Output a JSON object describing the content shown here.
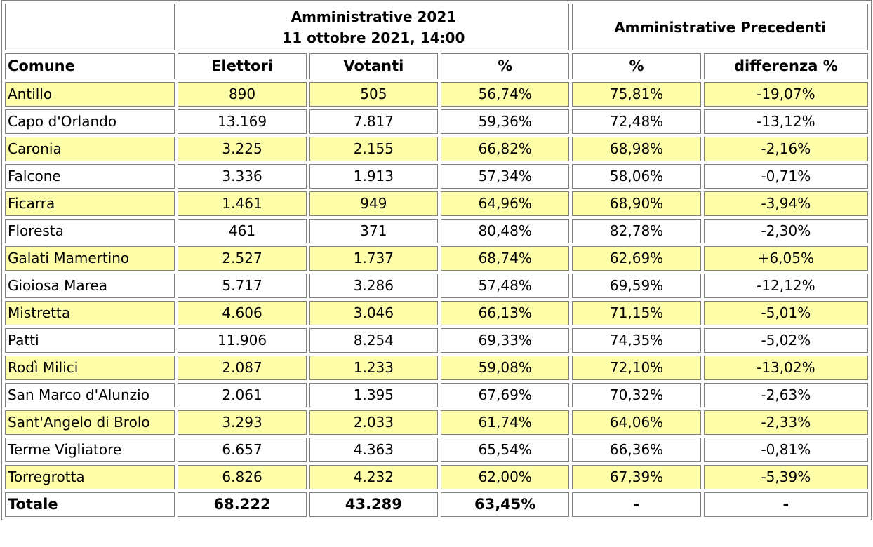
{
  "header": {
    "group1_line1": "Amministrative 2021",
    "group1_line2": "11 ottobre 2021, 14:00",
    "group2": "Amministrative Precedenti",
    "columns": [
      "Comune",
      "Elettori",
      "Votanti",
      "%",
      "%",
      "differenza %"
    ]
  },
  "rows": [
    {
      "comune": "Antillo",
      "elettori": "890",
      "votanti": "505",
      "pct": "56,74%",
      "pct_prev": "75,81%",
      "diff": "-19,07%"
    },
    {
      "comune": "Capo d'Orlando",
      "elettori": "13.169",
      "votanti": "7.817",
      "pct": "59,36%",
      "pct_prev": "72,48%",
      "diff": "-13,12%"
    },
    {
      "comune": "Caronia",
      "elettori": "3.225",
      "votanti": "2.155",
      "pct": "66,82%",
      "pct_prev": "68,98%",
      "diff": "-2,16%"
    },
    {
      "comune": "Falcone",
      "elettori": "3.336",
      "votanti": "1.913",
      "pct": "57,34%",
      "pct_prev": "58,06%",
      "diff": "-0,71%"
    },
    {
      "comune": "Ficarra",
      "elettori": "1.461",
      "votanti": "949",
      "pct": "64,96%",
      "pct_prev": "68,90%",
      "diff": "-3,94%"
    },
    {
      "comune": "Floresta",
      "elettori": "461",
      "votanti": "371",
      "pct": "80,48%",
      "pct_prev": "82,78%",
      "diff": "-2,30%"
    },
    {
      "comune": "Galati Mamertino",
      "elettori": "2.527",
      "votanti": "1.737",
      "pct": "68,74%",
      "pct_prev": "62,69%",
      "diff": "+6,05%"
    },
    {
      "comune": "Gioiosa Marea",
      "elettori": "5.717",
      "votanti": "3.286",
      "pct": "57,48%",
      "pct_prev": "69,59%",
      "diff": "-12,12%"
    },
    {
      "comune": "Mistretta",
      "elettori": "4.606",
      "votanti": "3.046",
      "pct": "66,13%",
      "pct_prev": "71,15%",
      "diff": "-5,01%"
    },
    {
      "comune": "Patti",
      "elettori": "11.906",
      "votanti": "8.254",
      "pct": "69,33%",
      "pct_prev": "74,35%",
      "diff": "-5,02%"
    },
    {
      "comune": "Rodì Milici",
      "elettori": "2.087",
      "votanti": "1.233",
      "pct": "59,08%",
      "pct_prev": "72,10%",
      "diff": "-13,02%"
    },
    {
      "comune": "San Marco d'Alunzio",
      "elettori": "2.061",
      "votanti": "1.395",
      "pct": "67,69%",
      "pct_prev": "70,32%",
      "diff": "-2,63%"
    },
    {
      "comune": "Sant'Angelo di Brolo",
      "elettori": "3.293",
      "votanti": "2.033",
      "pct": "61,74%",
      "pct_prev": "64,06%",
      "diff": "-2,33%"
    },
    {
      "comune": "Terme Vigliatore",
      "elettori": "6.657",
      "votanti": "4.363",
      "pct": "65,54%",
      "pct_prev": "66,36%",
      "diff": "-0,81%"
    },
    {
      "comune": "Torregrotta",
      "elettori": "6.826",
      "votanti": "4.232",
      "pct": "62,00%",
      "pct_prev": "67,39%",
      "diff": "-5,39%"
    }
  ],
  "total": {
    "comune": "Totale",
    "elettori": "68.222",
    "votanti": "43.289",
    "pct": "63,45%",
    "pct_prev": "-",
    "diff": "-"
  },
  "colors": {
    "highlight_row": "#ffffaa",
    "border": "#808080"
  }
}
